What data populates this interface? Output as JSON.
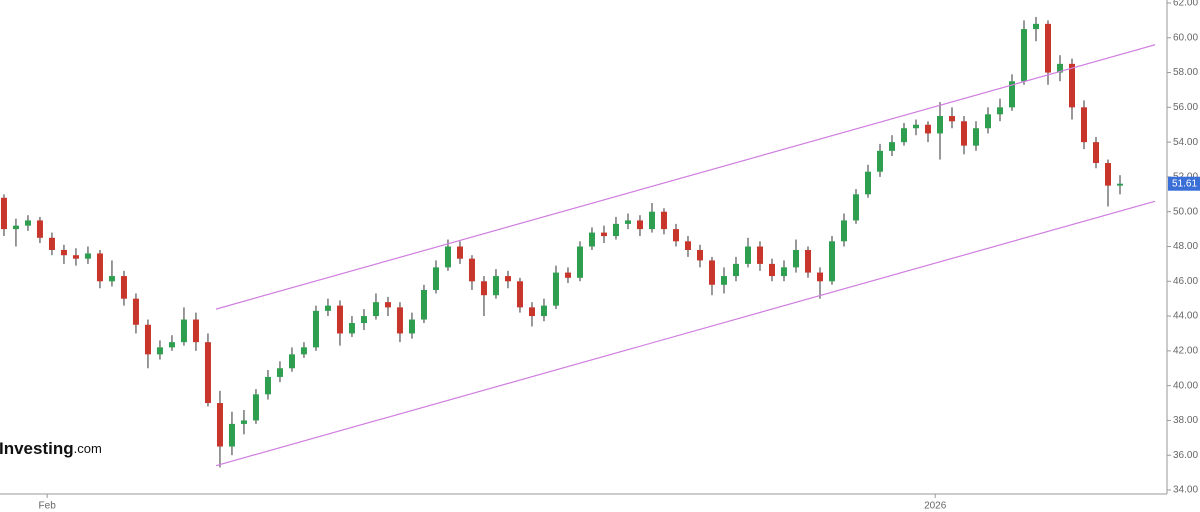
{
  "chart_data": {
    "type": "candlestick",
    "up_color": "#2e9e4f",
    "down_color": "#c8352b",
    "wick_color": "#333333",
    "open": [
      50.8,
      49.0,
      49.2,
      49.5,
      48.5,
      47.8,
      47.5,
      47.3,
      47.6,
      46.0,
      46.3,
      45.0,
      43.5,
      41.8,
      42.2,
      42.5,
      43.8,
      42.5,
      39.0,
      36.5,
      37.8,
      38.0,
      39.5,
      40.5,
      41.0,
      41.8,
      42.2,
      44.3,
      44.6,
      43.0,
      43.6,
      44.0,
      44.8,
      44.5,
      43.0,
      43.8,
      45.5,
      46.8,
      48.0,
      47.3,
      46.0,
      45.2,
      46.3,
      46.0,
      44.5,
      44.0,
      44.6,
      46.5,
      46.2,
      48.0,
      48.8,
      48.6,
      49.3,
      49.5,
      49.0,
      50.0,
      49.0,
      48.3,
      47.8,
      47.2,
      45.8,
      46.3,
      47.0,
      48.0,
      47.0,
      46.3,
      46.8,
      47.8,
      46.5,
      46.0,
      48.3,
      49.5,
      51.0,
      52.3,
      53.5,
      54.0,
      54.8,
      55.0,
      54.5,
      55.5,
      55.2,
      53.8,
      54.8,
      55.6,
      56.0,
      57.5,
      60.5,
      60.8,
      58.0,
      58.5,
      56.0,
      54.0,
      52.8,
      51.5
    ],
    "high": [
      51.0,
      49.6,
      49.8,
      49.7,
      48.8,
      48.1,
      47.9,
      48.0,
      47.8,
      47.2,
      46.6,
      45.3,
      43.8,
      42.6,
      42.9,
      44.5,
      44.2,
      43.0,
      39.7,
      38.5,
      38.6,
      39.8,
      40.9,
      41.4,
      42.2,
      42.5,
      44.6,
      45.0,
      44.9,
      44.0,
      44.4,
      45.3,
      45.1,
      44.8,
      44.2,
      45.8,
      47.2,
      48.4,
      48.3,
      47.5,
      46.3,
      46.7,
      46.6,
      46.2,
      44.8,
      45.0,
      46.9,
      46.8,
      48.3,
      49.1,
      49.2,
      49.7,
      49.9,
      49.8,
      50.5,
      50.2,
      49.3,
      48.6,
      48.1,
      47.4,
      46.8,
      47.4,
      48.5,
      48.3,
      47.3,
      47.2,
      48.4,
      48.0,
      46.8,
      48.6,
      49.9,
      51.3,
      52.7,
      53.9,
      54.4,
      55.1,
      55.3,
      55.2,
      56.3,
      56.0,
      55.5,
      55.2,
      56.0,
      56.5,
      57.9,
      61.0,
      61.2,
      61.0,
      59.0,
      58.8,
      56.4,
      54.3,
      53.0,
      52.1
    ],
    "low": [
      48.6,
      48.0,
      48.9,
      48.2,
      47.5,
      47.0,
      46.9,
      47.0,
      45.6,
      45.7,
      44.6,
      43.0,
      41.0,
      41.5,
      42.0,
      42.3,
      42.0,
      38.8,
      35.3,
      36.0,
      37.2,
      37.8,
      39.2,
      40.2,
      40.8,
      41.6,
      42.0,
      44.0,
      42.3,
      42.8,
      43.2,
      43.8,
      44.0,
      42.5,
      42.7,
      43.6,
      45.3,
      46.6,
      47.0,
      45.5,
      44.0,
      45.0,
      45.6,
      44.2,
      43.4,
      43.7,
      44.4,
      45.9,
      46.0,
      47.8,
      48.2,
      48.4,
      49.0,
      48.6,
      48.8,
      48.7,
      48.0,
      47.4,
      46.8,
      45.2,
      45.3,
      46.0,
      46.8,
      46.6,
      46.0,
      46.0,
      46.5,
      46.2,
      45.0,
      45.8,
      48.0,
      49.3,
      50.8,
      52.0,
      53.2,
      53.8,
      54.4,
      54.0,
      53.0,
      54.8,
      53.3,
      53.5,
      54.5,
      55.2,
      55.8,
      57.3,
      59.8,
      57.3,
      57.5,
      55.3,
      53.6,
      52.5,
      50.3,
      51.0
    ],
    "close": [
      49.0,
      49.2,
      49.5,
      48.5,
      47.8,
      47.5,
      47.3,
      47.6,
      46.0,
      46.3,
      45.0,
      43.5,
      41.8,
      42.2,
      42.5,
      43.8,
      42.5,
      39.0,
      36.5,
      37.8,
      38.0,
      39.5,
      40.5,
      41.0,
      41.8,
      42.2,
      44.3,
      44.6,
      43.0,
      43.6,
      44.0,
      44.8,
      44.5,
      43.0,
      43.8,
      45.5,
      46.8,
      48.0,
      47.3,
      46.0,
      45.2,
      46.3,
      46.0,
      44.5,
      44.0,
      44.6,
      46.5,
      46.2,
      48.0,
      48.8,
      48.6,
      49.3,
      49.5,
      49.0,
      50.0,
      49.0,
      48.3,
      47.8,
      47.2,
      45.8,
      46.3,
      47.0,
      48.0,
      47.0,
      46.3,
      46.8,
      47.8,
      46.5,
      46.0,
      48.3,
      49.5,
      51.0,
      52.3,
      53.5,
      54.0,
      54.8,
      55.0,
      54.5,
      55.5,
      55.2,
      53.8,
      54.8,
      55.6,
      56.0,
      57.5,
      60.5,
      60.8,
      58.0,
      58.5,
      56.0,
      54.0,
      52.8,
      51.5,
      51.61
    ],
    "last_price": 51.61,
    "last_price_color": "#3a6fd8",
    "trendline_color": "#d07ee0",
    "trendlines": [
      {
        "x": [
          17.67,
          95.92
        ],
        "y": [
          44.4,
          59.6
        ]
      },
      {
        "x": [
          17.67,
          95.92
        ],
        "y": [
          35.4,
          50.6
        ]
      }
    ],
    "xlim": [
      -0.33,
      96.75
    ],
    "xticks": [
      {
        "value": 3.6,
        "label": "Feb"
      },
      {
        "value": 77.6,
        "label": "2026"
      }
    ],
    "ylim": [
      34,
      62
    ],
    "yticks": [
      {
        "value": 34,
        "label": "34.00"
      },
      {
        "value": 36,
        "label": "36.00"
      },
      {
        "value": 38,
        "label": "38.00"
      },
      {
        "value": 40,
        "label": "40.00"
      },
      {
        "value": 42,
        "label": "42.00"
      },
      {
        "value": 44,
        "label": "44.00"
      },
      {
        "value": 46,
        "label": "46.00"
      },
      {
        "value": 48,
        "label": "48.00"
      },
      {
        "value": 50,
        "label": "50.00"
      },
      {
        "value": 52,
        "label": "52.00"
      },
      {
        "value": 54,
        "label": "54.00"
      },
      {
        "value": 56,
        "label": "56.00"
      },
      {
        "value": 58,
        "label": "58.00"
      },
      {
        "value": 60,
        "label": "60.00"
      },
      {
        "value": 62,
        "label": "62.00"
      }
    ],
    "watermark_brand": "Investing",
    "watermark_suffix": ".com"
  }
}
